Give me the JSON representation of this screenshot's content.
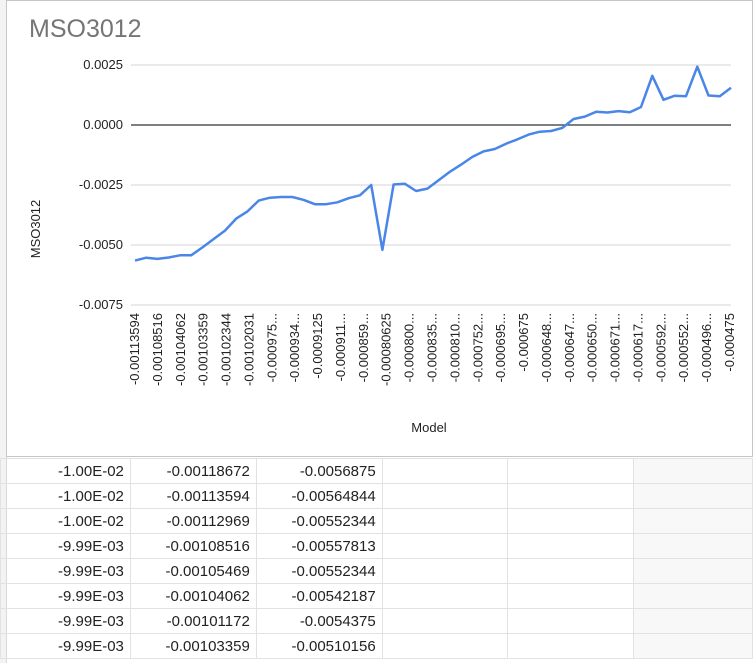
{
  "chart_data": {
    "type": "line",
    "title": "MSO3012",
    "xlabel": "Model",
    "ylabel": "MSO3012",
    "ylim": [
      -0.0075,
      0.0025
    ],
    "yticks": [
      "0.0025",
      "0.0000",
      "-0.0025",
      "-0.0050",
      "-0.0075"
    ],
    "ytick_values": [
      0.0025,
      0,
      -0.0025,
      -0.005,
      -0.0075
    ],
    "zero_line": true,
    "grid": true,
    "line_color": "#4a86e8",
    "xtick_labels": [
      "-0.00113594",
      "-0.00108516",
      "-0.00104062",
      "-0.00103359",
      "-0.00102344",
      "-0.00102031",
      "-0.000975...",
      "-0.000934...",
      "-0.0009125",
      "-0.000911...",
      "-0.000859...",
      "-0.00080625",
      "-0.000800...",
      "-0.000835...",
      "-0.000810...",
      "-0.000752...",
      "-0.000695...",
      "-0.000675",
      "-0.000648...",
      "-0.000647...",
      "-0.000650...",
      "-0.000671...",
      "-0.000617...",
      "-0.000592...",
      "-0.000552...",
      "-0.000496...",
      "-0.000475"
    ],
    "series": [
      {
        "values": [
          -0.00565,
          -0.00553,
          -0.00558,
          -0.00552,
          -0.00543,
          -0.00543,
          -0.0051,
          -0.00475,
          -0.0044,
          -0.0039,
          -0.0036,
          -0.00315,
          -0.00303,
          -0.003,
          -0.003,
          -0.00312,
          -0.0033,
          -0.0033,
          -0.00322,
          -0.00305,
          -0.00293,
          -0.0025,
          -0.0052,
          -0.00248,
          -0.00245,
          -0.00275,
          -0.00265,
          -0.0023,
          -0.00195,
          -0.00165,
          -0.00133,
          -0.0011,
          -0.001,
          -0.00078,
          -0.0006,
          -0.0004,
          -0.00028,
          -0.00025,
          -0.00012,
          0.00025,
          0.00035,
          0.00055,
          0.00052,
          0.00058,
          0.00053,
          0.00075,
          0.00205,
          0.00105,
          0.00122,
          0.0012,
          0.00243,
          0.00123,
          0.0012,
          0.00155
        ]
      }
    ]
  },
  "sheet": {
    "rows": [
      [
        "-1.00E-02",
        "-0.00118672",
        "-0.0056875"
      ],
      [
        "-1.00E-02",
        "-0.00113594",
        "-0.00564844"
      ],
      [
        "-1.00E-02",
        "-0.00112969",
        "-0.00552344"
      ],
      [
        "-9.99E-03",
        "-0.00108516",
        "-0.00557813"
      ],
      [
        "-9.99E-03",
        "-0.00105469",
        "-0.00552344"
      ],
      [
        "-9.99E-03",
        "-0.00104062",
        "-0.00542187"
      ],
      [
        "-9.99E-03",
        "-0.00101172",
        "-0.0054375"
      ],
      [
        "-9.99E-03",
        "-0.00103359",
        "-0.00510156"
      ]
    ]
  }
}
